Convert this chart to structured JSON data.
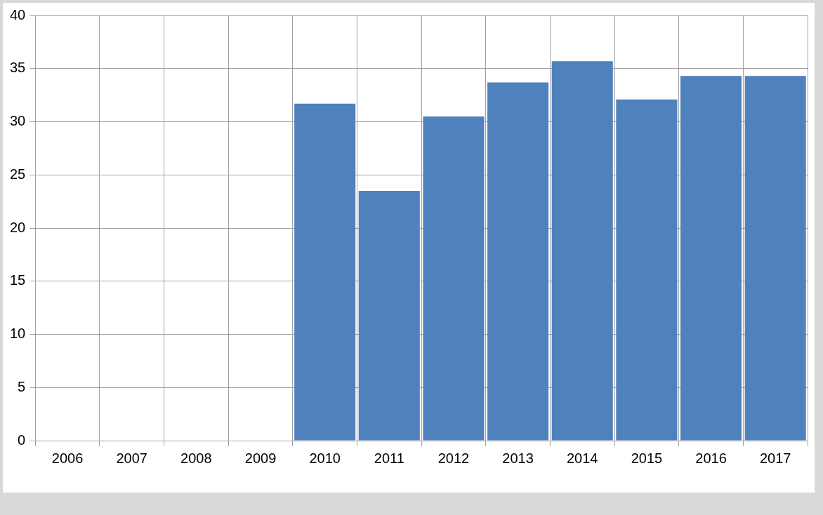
{
  "chart_data": {
    "type": "bar",
    "categories": [
      "2006",
      "2007",
      "2008",
      "2009",
      "2010",
      "2011",
      "2012",
      "2013",
      "2014",
      "2015",
      "2016",
      "2017"
    ],
    "values": [
      null,
      null,
      null,
      null,
      31.7,
      23.5,
      30.5,
      33.7,
      35.7,
      32.1,
      34.3,
      34.3
    ],
    "color": "#4f81bd",
    "ylim": [
      0,
      40
    ],
    "yticks": [
      0,
      5,
      10,
      15,
      20,
      25,
      30,
      35,
      40
    ],
    "grid": true
  }
}
